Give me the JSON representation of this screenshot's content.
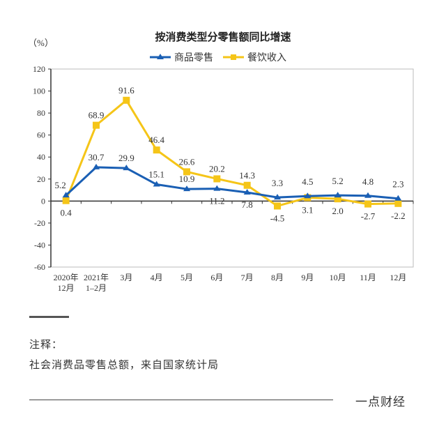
{
  "chart_data": {
    "type": "line",
    "title": "按消费类型分零售额同比增速",
    "ylabel": "（%）",
    "ylim": [
      -60,
      120
    ],
    "yticks": [
      120,
      100,
      80,
      60,
      40,
      20,
      0,
      -20,
      -40,
      -60
    ],
    "categories": [
      [
        "2020年",
        "12月"
      ],
      [
        "2021年",
        "1–2月"
      ],
      [
        "3月"
      ],
      [
        "4月"
      ],
      [
        "5月"
      ],
      [
        "6月"
      ],
      [
        "7月"
      ],
      [
        "8月"
      ],
      [
        "9月"
      ],
      [
        "10月"
      ],
      [
        "11月"
      ],
      [
        "12月"
      ]
    ],
    "legend_position": "top-center",
    "grid": false,
    "series": [
      {
        "name": "商品零售",
        "color": "#1a5fb4",
        "marker": "triangle",
        "values": [
          5.2,
          30.7,
          29.9,
          15.1,
          10.9,
          11.2,
          7.8,
          3.3,
          4.5,
          5.2,
          4.8,
          2.3
        ]
      },
      {
        "name": "餐饮收入",
        "color": "#f5c518",
        "marker": "square",
        "values": [
          0.4,
          68.9,
          91.6,
          46.4,
          26.6,
          20.2,
          14.3,
          -4.5,
          3.1,
          2.0,
          -2.7,
          -2.2
        ]
      }
    ]
  },
  "note": {
    "label": "注释：",
    "text": "社会消费品零售总额，来自国家统计局"
  },
  "footer": {
    "brand": "一点财经"
  }
}
